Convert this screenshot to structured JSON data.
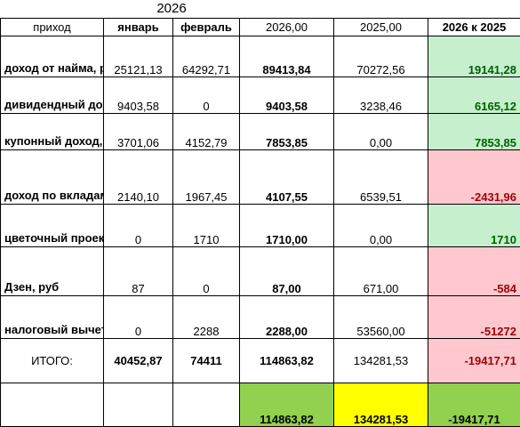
{
  "year_title": "2026",
  "headers": {
    "label": "приход",
    "jan": "январь",
    "feb": "февраль",
    "y2026": "2026,00",
    "y2025": "2025,00",
    "cmp": "2026 к 2025"
  },
  "rows": [
    {
      "label": "доход от найма, руб",
      "jan": "25121,13",
      "feb": "64292,71",
      "y2026": "89413,84",
      "y2025": "70272,56",
      "diff": "19141,28"
    },
    {
      "label": "дивидендный доход, руб",
      "jan": "9403,58",
      "feb": "0",
      "y2026": "9403,58",
      "y2025": "3238,46",
      "diff": "6165,12"
    },
    {
      "label": "купонный доход, руб",
      "jan": "3701,06",
      "feb": "4152,79",
      "y2026": "7853,85",
      "y2025": "0,00",
      "diff": "7853,85"
    },
    {
      "label": "доход по вкладам, % на остаток, руб",
      "jan": "2140,10",
      "feb": "1967,45",
      "y2026": "4107,55",
      "y2025": "6539,51",
      "diff": "-2431,96"
    },
    {
      "label": "цветочный проект, руб",
      "jan": "0",
      "feb": "1710",
      "y2026": "1710,00",
      "y2025": "0,00",
      "diff": "1710"
    },
    {
      "label": "Дзен, руб",
      "jan": "87",
      "feb": "0",
      "y2026": "87,00",
      "y2025": "671,00",
      "diff": "-584"
    },
    {
      "label": "налоговый вычет, руб",
      "jan": "0",
      "feb": "2288",
      "y2026": "2288,00",
      "y2025": "53560,00",
      "diff": "-51272"
    }
  ],
  "total": {
    "label": "ИТОГО:",
    "jan": "40452,87",
    "feb": "74411",
    "y2026": "114863,82",
    "y2025": "134281,53",
    "diff": "-19417,71"
  },
  "summary": {
    "y2026": "114863,82",
    "y2025": "134281,53",
    "diff": "-19417,71"
  },
  "colors": {
    "positive_fill": "#c6efce",
    "negative_fill": "#ffc7ce",
    "summary_green": "#92d050",
    "summary_yellow": "#ffff00"
  }
}
